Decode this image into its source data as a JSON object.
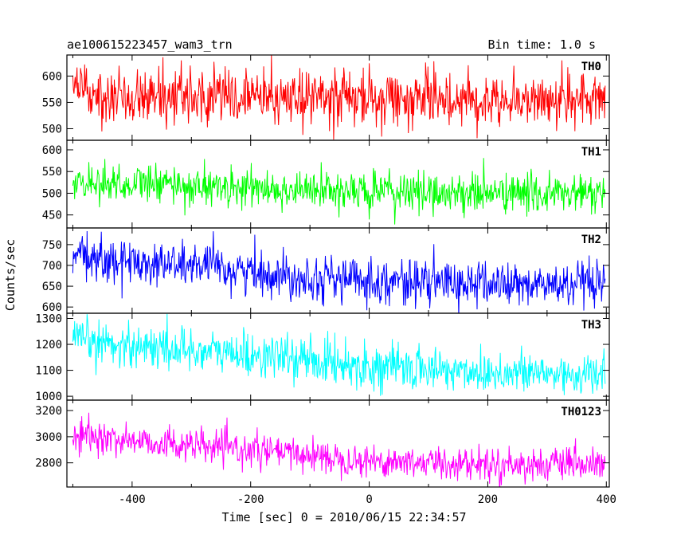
{
  "chart_data": {
    "type": "line",
    "title": "ae100615223457_wam3_trn",
    "subtitle": "Bin time: 1.0 s",
    "xlabel": "Time [sec] 0 = 2010/06/15 22:34:57",
    "ylabel": "Counts/sec",
    "xlim": [
      -510,
      405
    ],
    "x_tick_labels": [
      "-400",
      "-200",
      "0",
      "200",
      "400"
    ],
    "x_tick_values": [
      -400,
      -200,
      0,
      200,
      400
    ],
    "grid": false,
    "panels": [
      {
        "name": "TH0",
        "color": "#ff0000",
        "ylim": [
          478,
          640
        ],
        "y_tick_values": [
          500,
          550,
          600
        ],
        "y_tick_labels": [
          "500",
          "550",
          "600"
        ],
        "x_start": -500,
        "x_end": 398,
        "trend": [
          [
            -500,
            570
          ],
          [
            -300,
            562
          ],
          [
            0,
            557
          ],
          [
            200,
            557
          ],
          [
            398,
            553
          ]
        ],
        "noise_sd": 26
      },
      {
        "name": "TH1",
        "color": "#00ff00",
        "ylim": [
          420,
          622
        ],
        "y_tick_values": [
          450,
          500,
          550,
          600
        ],
        "y_tick_labels": [
          "450",
          "500",
          "550",
          "600"
        ],
        "x_start": -500,
        "x_end": 398,
        "trend": [
          [
            -500,
            527
          ],
          [
            -300,
            517
          ],
          [
            -150,
            508
          ],
          [
            0,
            503
          ],
          [
            200,
            500
          ],
          [
            398,
            498
          ]
        ],
        "noise_sd": 23
      },
      {
        "name": "TH2",
        "color": "#0000ff",
        "ylim": [
          585,
          790
        ],
        "y_tick_values": [
          600,
          650,
          700,
          750
        ],
        "y_tick_labels": [
          "600",
          "650",
          "700",
          "750"
        ],
        "x_start": -500,
        "x_end": 398,
        "trend": [
          [
            -500,
            718
          ],
          [
            -300,
            700
          ],
          [
            -150,
            677
          ],
          [
            0,
            664
          ],
          [
            200,
            655
          ],
          [
            398,
            650
          ]
        ],
        "noise_sd": 27
      },
      {
        "name": "TH3",
        "color": "#00ffff",
        "ylim": [
          985,
          1320
        ],
        "y_tick_values": [
          1000,
          1100,
          1200,
          1300
        ],
        "y_tick_labels": [
          "1000",
          "1100",
          "1200",
          "1300"
        ],
        "x_start": -500,
        "x_end": 398,
        "trend": [
          [
            -500,
            1215
          ],
          [
            -300,
            1178
          ],
          [
            -100,
            1140
          ],
          [
            0,
            1115
          ],
          [
            200,
            1093
          ],
          [
            398,
            1080
          ]
        ],
        "noise_sd": 42
      },
      {
        "name": "TH0123",
        "color": "#ff00ff",
        "ylim": [
          2615,
          3280
        ],
        "y_tick_values": [
          2800,
          3000,
          3200
        ],
        "y_tick_labels": [
          "2800",
          "3000",
          "3200"
        ],
        "x_start": -500,
        "x_end": 398,
        "trend": [
          [
            -500,
            3010
          ],
          [
            -300,
            2930
          ],
          [
            -100,
            2860
          ],
          [
            0,
            2815
          ],
          [
            200,
            2790
          ],
          [
            398,
            2780
          ]
        ],
        "noise_sd": 62
      }
    ]
  }
}
